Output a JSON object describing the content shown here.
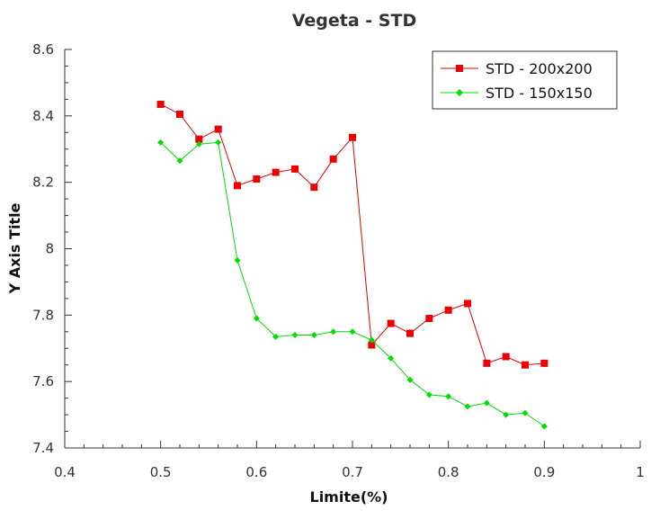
{
  "chart_data": {
    "type": "line",
    "title": "Vegeta - STD",
    "xlabel": "Limite(%)",
    "ylabel": "Y Axis Title",
    "xlim": [
      0.4,
      1.0
    ],
    "ylim": [
      7.4,
      8.6
    ],
    "xticks": [
      "0.4",
      "0.5",
      "0.6",
      "0.7",
      "0.8",
      "0.9",
      "1"
    ],
    "yticks": [
      "7.4",
      "7.6",
      "7.8",
      "8",
      "8.2",
      "8.4",
      "8.6"
    ],
    "grid": false,
    "legend_position": "top-right",
    "x": [
      0.5,
      0.52,
      0.54,
      0.56,
      0.58,
      0.6,
      0.62,
      0.64,
      0.66,
      0.68,
      0.7,
      0.72,
      0.74,
      0.76,
      0.78,
      0.8,
      0.82,
      0.84,
      0.86,
      0.88,
      0.9
    ],
    "series": [
      {
        "name": "STD - 200x200",
        "color": "#dd0000",
        "marker": "square",
        "values": [
          8.435,
          8.405,
          8.33,
          8.36,
          8.19,
          8.21,
          8.23,
          8.24,
          8.185,
          8.27,
          8.335,
          7.71,
          7.775,
          7.745,
          7.79,
          7.815,
          7.835,
          7.655,
          7.675,
          7.65,
          7.655
        ]
      },
      {
        "name": "STD - 150x150",
        "color": "#00dd00",
        "marker": "diamond",
        "values": [
          8.32,
          8.265,
          8.315,
          8.32,
          7.965,
          7.79,
          7.735,
          7.74,
          7.74,
          7.75,
          7.75,
          7.725,
          7.67,
          7.605,
          7.56,
          7.555,
          7.525,
          7.535,
          7.5,
          7.505,
          7.465
        ]
      }
    ]
  }
}
